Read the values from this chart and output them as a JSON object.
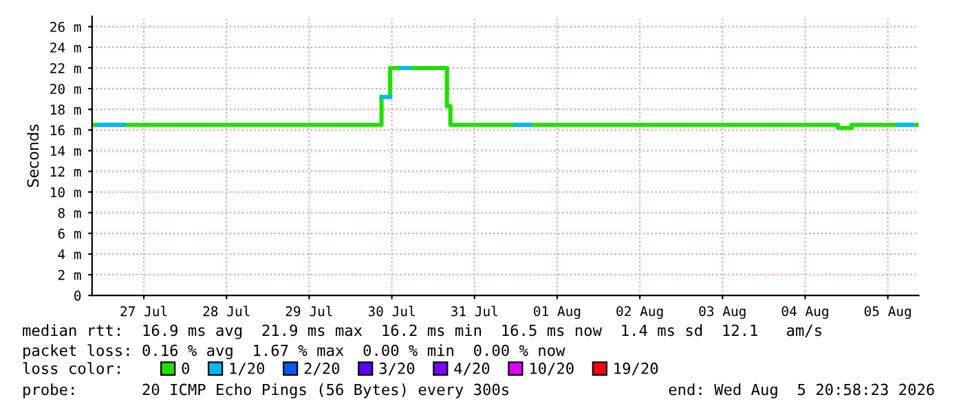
{
  "chart_data": {
    "type": "step",
    "ylabel": "Seconds",
    "legend_title": "loss color:",
    "legend": "bottom",
    "grid": true,
    "line_style": "solid",
    "marker": "none",
    "xlim": [
      "2026-07-26T20:58",
      "2026-08-05T20:58"
    ],
    "xticks": [
      {
        "value": "2026-07-27T12:00",
        "label": "27 Jul"
      },
      {
        "value": "2026-07-28T12:00",
        "label": "28 Jul"
      },
      {
        "value": "2026-07-29T12:00",
        "label": "29 Jul"
      },
      {
        "value": "2026-07-30T12:00",
        "label": "30 Jul"
      },
      {
        "value": "2026-07-31T12:00",
        "label": "31 Jul"
      },
      {
        "value": "2026-08-01T12:00",
        "label": "01 Aug"
      },
      {
        "value": "2026-08-02T12:00",
        "label": "02 Aug"
      },
      {
        "value": "2026-08-03T12:00",
        "label": "03 Aug"
      },
      {
        "value": "2026-08-04T12:00",
        "label": "04 Aug"
      },
      {
        "value": "2026-08-05T12:00",
        "label": "05 Aug"
      }
    ],
    "ylim": [
      0,
      27
    ],
    "yticks": [
      0,
      {
        "value": 2,
        "label": "2 m"
      },
      {
        "value": 4,
        "label": "4 m"
      },
      {
        "value": 6,
        "label": "6 m"
      },
      {
        "value": 8,
        "label": "8 m"
      },
      {
        "value": 10,
        "label": "10 m"
      },
      {
        "value": 12,
        "label": "12 m"
      },
      {
        "value": 14,
        "label": "14 m"
      },
      {
        "value": 16,
        "label": "16 m"
      },
      {
        "value": 18,
        "label": "18 m"
      },
      {
        "value": 20,
        "label": "20 m"
      },
      {
        "value": 22,
        "label": "22 m"
      },
      {
        "value": 24,
        "label": "24 m"
      },
      {
        "value": 26,
        "label": "26 m"
      }
    ],
    "series": [
      {
        "name": "0",
        "color": "#20e000",
        "x": [
          "2026-07-26T20:58",
          "2026-07-30T09:00",
          "2026-07-30T11:30",
          "2026-07-31T04:00",
          "2026-07-31T05:00",
          "2026-08-04T21:30",
          "2026-08-05T01:30",
          "2026-08-05T20:58"
        ],
        "values": [
          16.5,
          19.2,
          22.0,
          18.3,
          16.5,
          16.2,
          16.5,
          16.5
        ]
      },
      {
        "name": "1/20",
        "type": "line",
        "color": "#00b8ff",
        "x": [
          "2026-07-26T23:00",
          "2026-07-27T06:00",
          "2026-07-28T12:00",
          "2026-07-30T09:00",
          "2026-07-30T11:30",
          "2026-07-30T12:00",
          "2026-07-30T15:00",
          "2026-07-30T17:00",
          "2026-07-31T12:00",
          "2026-08-01T00:00",
          "2026-08-01T04:00",
          "2026-08-03T12:00",
          "2026-08-05T15:00",
          "2026-08-05T19:00"
        ],
        "values": [
          16.5,
          16.5,
          null,
          19.2,
          19.2,
          null,
          22.0,
          22.0,
          null,
          16.5,
          16.5,
          null,
          16.5,
          16.5
        ]
      },
      {
        "name": "2/20",
        "color": "#0059ff"
      },
      {
        "name": "3/20",
        "color": "#5e00ff"
      },
      {
        "name": "4/20",
        "color": "#7e00ff"
      },
      {
        "name": "10/20",
        "color": "#dd00ff"
      },
      {
        "name": "19/20",
        "color": "#ff0000"
      }
    ],
    "annotations": [
      "median rtt:  16.9 ms avg  21.9 ms max  16.2 ms min  16.5 ms now  1.4 ms sd  12.1   am/s",
      "packet loss: 0.16 % avg  1.67 % max  0.00 % min  0.00 % now",
      "probe:       20 ICMP Echo Pings (56 Bytes) every 300s",
      "end: Wed Aug  5 20:58:23 2026"
    ]
  }
}
